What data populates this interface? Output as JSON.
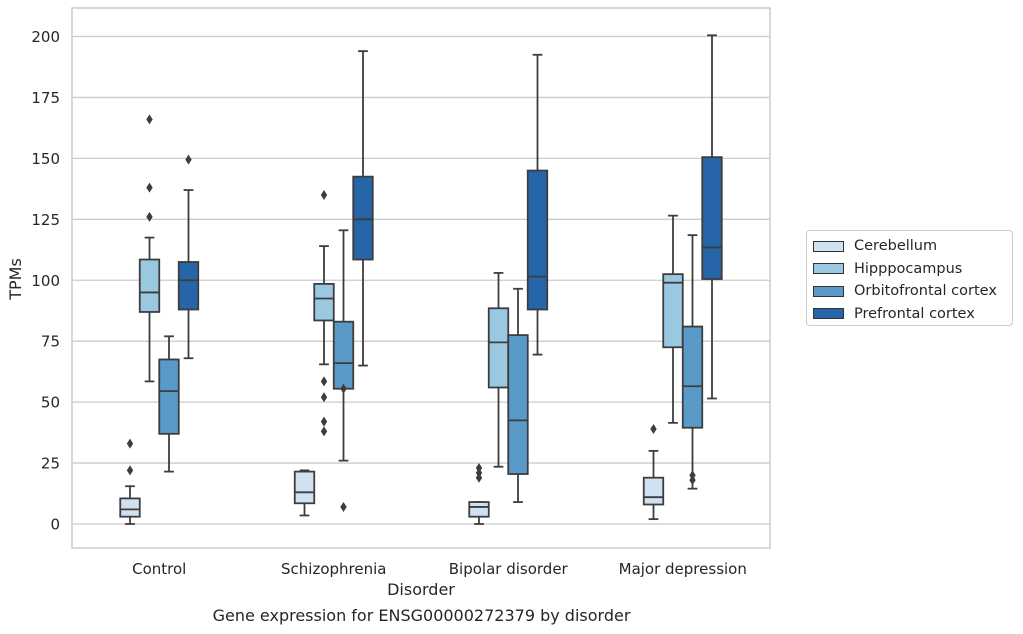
{
  "caption": "Gene expression for ENSG00000272379 by disorder",
  "chart_data": {
    "type": "boxplot",
    "xlabel": "Disorder",
    "ylabel": "TPMs",
    "ylim": [
      -10,
      210
    ],
    "yticks": [
      0,
      25,
      50,
      75,
      100,
      125,
      150,
      175,
      200
    ],
    "grid": "horizontal",
    "legend_position": "right",
    "categories": [
      "Control",
      "Schizophrenia",
      "Bipolar disorder",
      "Major depression"
    ],
    "series": [
      {
        "name": "Cerebellum",
        "color": "#d0e1f2",
        "boxes": [
          {
            "whislo": 0,
            "q1": 3,
            "med": 6,
            "q3": 10.5,
            "whishi": 15.5,
            "fliers": [
              22,
              33
            ]
          },
          {
            "whislo": 3.5,
            "q1": 8.5,
            "med": 13,
            "q3": 21.5,
            "whishi": 22,
            "fliers": []
          },
          {
            "whislo": 0,
            "q1": 3,
            "med": 7,
            "q3": 9,
            "whishi": 9,
            "fliers": [
              19,
              21,
              23
            ]
          },
          {
            "whislo": 2,
            "q1": 8,
            "med": 11,
            "q3": 19,
            "whishi": 30,
            "fliers": [
              39
            ]
          }
        ]
      },
      {
        "name": "Hipppocampus",
        "color": "#9ac8e0",
        "boxes": [
          {
            "whislo": 58.5,
            "q1": 87,
            "med": 95,
            "q3": 108.5,
            "whishi": 117.5,
            "fliers": [
              126,
              138,
              166
            ]
          },
          {
            "whislo": 65.5,
            "q1": 83.5,
            "med": 92.5,
            "q3": 98.5,
            "whishi": 114,
            "fliers": [
              38,
              42,
              52,
              58.5,
              135
            ]
          },
          {
            "whislo": 23.5,
            "q1": 56,
            "med": 74.5,
            "q3": 88.5,
            "whishi": 103,
            "fliers": []
          },
          {
            "whislo": 41.5,
            "q1": 72.5,
            "med": 99,
            "q3": 102.5,
            "whishi": 126.5,
            "fliers": []
          }
        ]
      },
      {
        "name": "Orbitofrontal cortex",
        "color": "#5a9ac8",
        "boxes": [
          {
            "whislo": 21.5,
            "q1": 37,
            "med": 54.5,
            "q3": 67.5,
            "whishi": 77,
            "fliers": []
          },
          {
            "whislo": 26,
            "q1": 55.5,
            "med": 66,
            "q3": 83,
            "whishi": 120.5,
            "fliers": [
              7,
              55.5
            ]
          },
          {
            "whislo": 9,
            "q1": 20.5,
            "med": 42.5,
            "q3": 77.5,
            "whishi": 96.5,
            "fliers": []
          },
          {
            "whislo": 14.5,
            "q1": 39.5,
            "med": 56.5,
            "q3": 81,
            "whishi": 118.5,
            "fliers": [
              18,
              20
            ]
          }
        ]
      },
      {
        "name": "Prefrontal cortex",
        "color": "#2565a8",
        "boxes": [
          {
            "whislo": 68,
            "q1": 88,
            "med": 100,
            "q3": 107.5,
            "whishi": 137,
            "fliers": [
              149.5
            ]
          },
          {
            "whislo": 65,
            "q1": 108.5,
            "med": 125,
            "q3": 142.5,
            "whishi": 194,
            "fliers": []
          },
          {
            "whislo": 69.5,
            "q1": 88,
            "med": 101.5,
            "q3": 145,
            "whishi": 192.5,
            "fliers": []
          },
          {
            "whislo": 51.5,
            "q1": 100.5,
            "med": 113.5,
            "q3": 150.5,
            "whishi": 200.5,
            "fliers": []
          }
        ]
      }
    ]
  }
}
